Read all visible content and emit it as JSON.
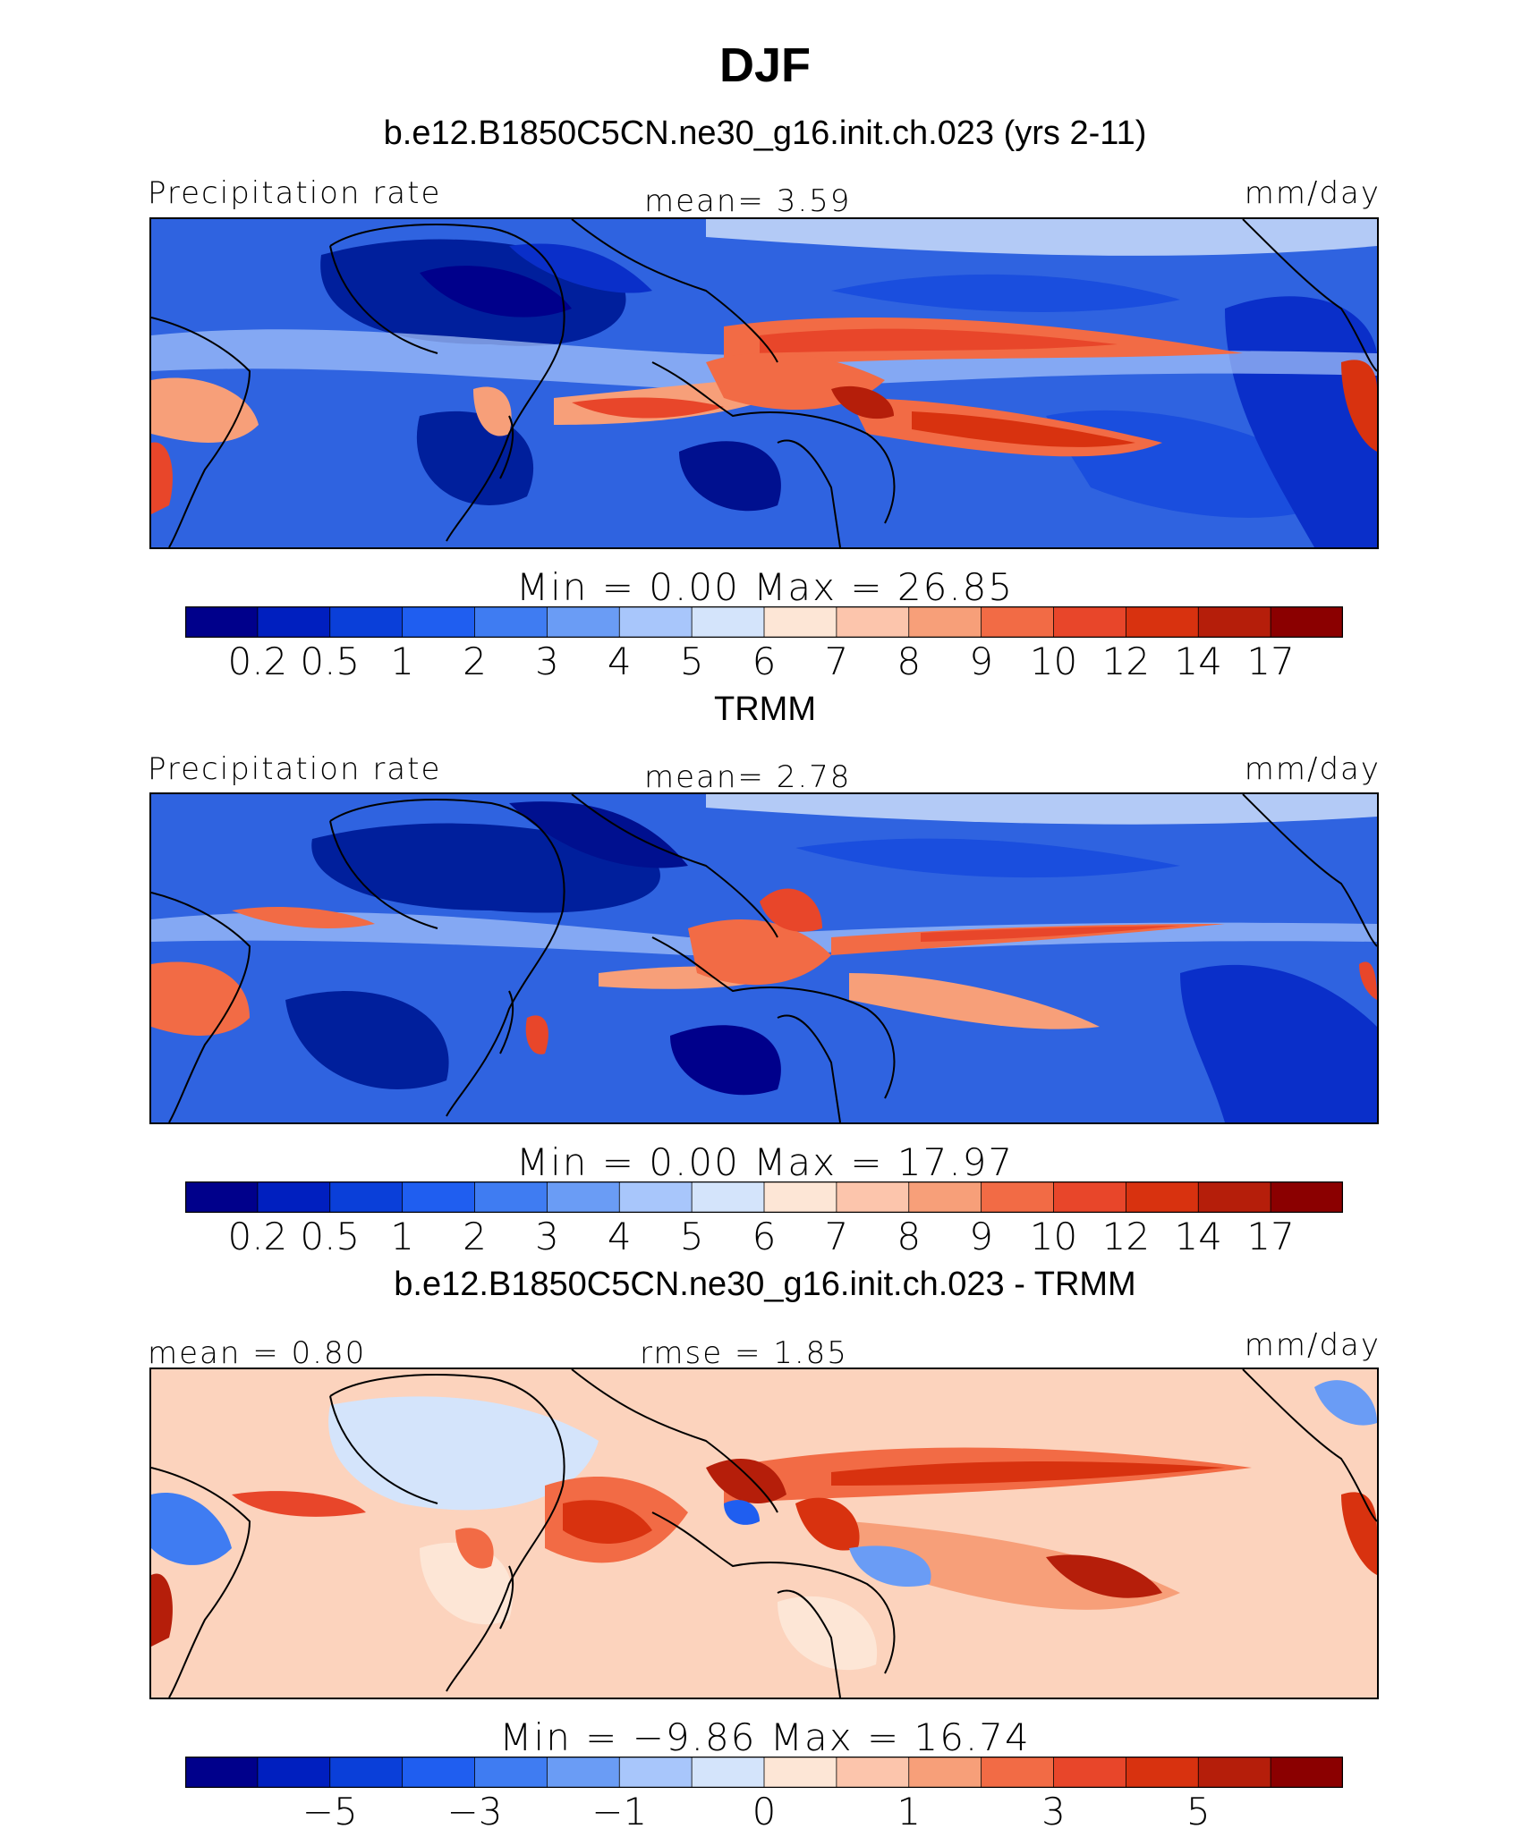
{
  "figure": {
    "title": "DJF"
  },
  "colors": {
    "palette": [
      "#00008b",
      "#001fbf",
      "#0a3fd9",
      "#1f5ef0",
      "#3f7cf2",
      "#6a9cf5",
      "#a8c6fb",
      "#d4e4fb",
      "#fde6d6",
      "#fcc5ac",
      "#f79f79",
      "#f26b45",
      "#e8462a",
      "#d8320f",
      "#b51e0a",
      "#8b0000"
    ]
  },
  "panels": [
    {
      "title": "b.e12.B1850C5CN.ne30_g16.init.ch.023 (yrs 2-11)",
      "left_label": "Precipitation rate",
      "center_label": "mean=    3.59",
      "right_label": "mm/day",
      "minmax": "Min  =     0.00  Max  =    26.85",
      "colorbar_ticks": [
        "0.2",
        "0.5",
        "1",
        "2",
        "3",
        "4",
        "5",
        "6",
        "7",
        "8",
        "9",
        "10",
        "12",
        "14",
        "17"
      ]
    },
    {
      "title": "TRMM",
      "left_label": "Precipitation rate",
      "center_label": "mean=    2.78",
      "right_label": "mm/day",
      "minmax": "Min  =     0.00  Max  =    17.97",
      "colorbar_ticks": [
        "0.2",
        "0.5",
        "1",
        "2",
        "3",
        "4",
        "5",
        "6",
        "7",
        "8",
        "9",
        "10",
        "12",
        "14",
        "17"
      ]
    },
    {
      "title": "b.e12.B1850C5CN.ne30_g16.init.ch.023 - TRMM",
      "left_label": "mean  =    0.80",
      "center_label": "rmse  =    1.85",
      "right_label": "mm/day",
      "minmax": "Min  =   −9.86  Max  =   16.74",
      "colorbar_ticks": [
        "−5",
        "−3",
        "−1",
        "0",
        "1",
        "3",
        "5"
      ]
    }
  ],
  "chart_data": [
    {
      "type": "heatmap",
      "title": "b.e12.B1850C5CN.ne30_g16.init.ch.023 (yrs 2-11)",
      "variable": "Precipitation rate",
      "units": "mm/day",
      "mean": 3.59,
      "min": 0.0,
      "max": 26.85,
      "contour_levels": [
        0.2,
        0.5,
        1,
        2,
        3,
        4,
        5,
        6,
        7,
        8,
        9,
        10,
        12,
        14,
        17
      ]
    },
    {
      "type": "heatmap",
      "title": "TRMM",
      "variable": "Precipitation rate",
      "units": "mm/day",
      "mean": 2.78,
      "min": 0.0,
      "max": 17.97,
      "contour_levels": [
        0.2,
        0.5,
        1,
        2,
        3,
        4,
        5,
        6,
        7,
        8,
        9,
        10,
        12,
        14,
        17
      ]
    },
    {
      "type": "heatmap",
      "title": "b.e12.B1850C5CN.ne30_g16.init.ch.023 - TRMM",
      "units": "mm/day",
      "mean": 0.8,
      "rmse": 1.85,
      "min": -9.86,
      "max": 16.74,
      "contour_levels": [
        -5,
        -3,
        -1,
        0,
        1,
        3,
        5
      ]
    }
  ]
}
